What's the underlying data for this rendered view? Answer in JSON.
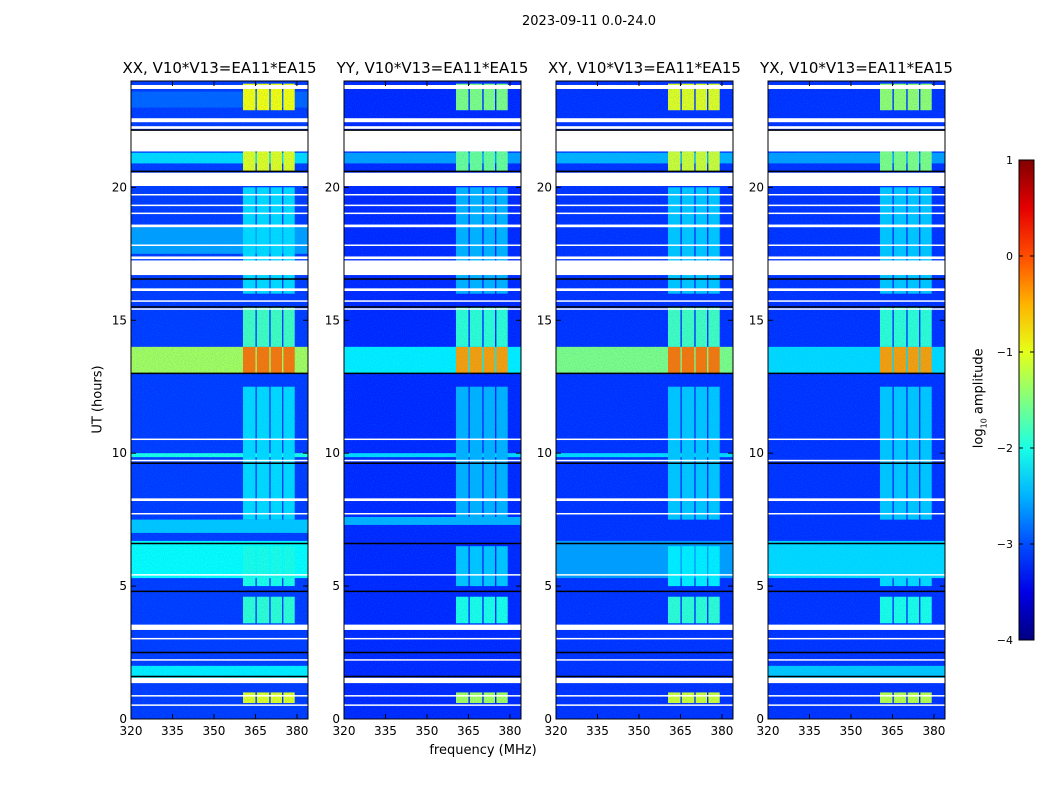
{
  "suptitle": "2023-09-11 0.0-24.0",
  "ylabel": "UT (hours)",
  "xlabel": "frequency (MHz)",
  "colorbar": {
    "label_prefix": "log",
    "label_sub": "10",
    "label_suffix": " amplitude",
    "range": [
      -4,
      1
    ],
    "ticks": [
      1,
      0,
      -1,
      -2,
      -3,
      -4
    ],
    "tick_labels": [
      "1",
      "0",
      "−1",
      "−2",
      "−3",
      "−4"
    ],
    "colormap": "jet"
  },
  "chart_data": {
    "type": "heatmap",
    "xlim": [
      320,
      384
    ],
    "ylim": [
      0,
      24
    ],
    "xticks": [
      320,
      335,
      350,
      365,
      380
    ],
    "xtick_labels": [
      "320",
      "335",
      "350",
      "365",
      "380"
    ],
    "yticks": [
      0,
      5,
      10,
      15,
      20
    ],
    "ytick_labels": [
      "0",
      "5",
      "10",
      "15",
      "20"
    ],
    "rfi_channels": [
      [
        360.5,
        365
      ],
      [
        365.5,
        370
      ],
      [
        370.5,
        374.6
      ],
      [
        375.1,
        379.2
      ]
    ],
    "flagged_hours": [
      [
        23.7,
        23.85
      ],
      [
        22.45,
        22.6
      ],
      [
        22.2,
        22.3
      ],
      [
        21.35,
        22.15
      ],
      [
        20.05,
        20.55
      ],
      [
        19.7,
        19.75
      ],
      [
        19.3,
        19.35
      ],
      [
        19.0,
        19.05
      ],
      [
        18.5,
        18.6
      ],
      [
        17.8,
        17.85
      ],
      [
        17.3,
        17.4
      ],
      [
        16.7,
        17.25
      ],
      [
        16.1,
        16.2
      ],
      [
        15.7,
        15.75
      ],
      [
        15.4,
        15.45
      ],
      [
        10.5,
        10.55
      ],
      [
        9.7,
        9.75
      ],
      [
        8.2,
        8.3
      ],
      [
        7.7,
        7.75
      ],
      [
        5.4,
        5.45
      ],
      [
        3.35,
        3.55
      ],
      [
        3.0,
        3.05
      ],
      [
        2.2,
        2.25
      ],
      [
        1.35,
        1.55
      ],
      [
        0.85,
        0.9
      ],
      [
        0.5,
        0.55
      ]
    ],
    "gap_lines_hours": [
      22.15,
      20.6,
      16.55,
      15.5,
      13.0,
      9.62,
      6.6,
      4.8,
      2.5,
      1.6
    ],
    "panels": [
      {
        "title": "XX, V10*V13=EA11*EA15",
        "base_level": -3.1,
        "segments": [
          {
            "t": [
              23.0,
              23.6
            ],
            "level": -2.9
          },
          {
            "t": [
              20.9,
              21.3
            ],
            "level": -2.3
          },
          {
            "t": [
              13.0,
              14.0
            ],
            "level": -1.3
          },
          {
            "t": [
              5.3,
              6.7
            ],
            "level": -2.1
          },
          {
            "t": [
              7.0,
              7.5
            ],
            "level": -2.4
          },
          {
            "t": [
              1.5,
              2.0
            ],
            "level": -2.2
          },
          {
            "t": [
              9.85,
              10.0
            ],
            "level": -2.0
          },
          {
            "t": [
              17.5,
              18.5
            ],
            "level": -2.6
          }
        ],
        "rfi_segments": [
          {
            "t": [
              22.9,
              23.9
            ],
            "level": -0.9
          },
          {
            "t": [
              20.6,
              21.35
            ],
            "level": -1.0
          },
          {
            "t": [
              13.0,
              14.0
            ],
            "level": -0.2
          },
          {
            "t": [
              14.0,
              15.5
            ],
            "level": -1.8
          },
          {
            "t": [
              5.0,
              6.5
            ],
            "level": -2.0
          },
          {
            "t": [
              3.6,
              4.6
            ],
            "level": -1.9
          },
          {
            "t": [
              0.6,
              1.0
            ],
            "level": -1.0
          },
          {
            "t": [
              7.5,
              12.5
            ],
            "level": -2.3
          },
          {
            "t": [
              16.0,
              20.0
            ],
            "level": -2.3
          }
        ]
      },
      {
        "title": "YY, V10*V13=EA11*EA15",
        "base_level": -3.2,
        "segments": [
          {
            "t": [
              13.0,
              14.0
            ],
            "level": -2.2
          },
          {
            "t": [
              7.3,
              7.6
            ],
            "level": -2.5
          },
          {
            "t": [
              20.9,
              21.3
            ],
            "level": -2.6
          },
          {
            "t": [
              9.85,
              10.0
            ],
            "level": -2.3
          }
        ],
        "rfi_segments": [
          {
            "t": [
              22.9,
              23.9
            ],
            "level": -1.5
          },
          {
            "t": [
              20.6,
              21.35
            ],
            "level": -1.6
          },
          {
            "t": [
              13.0,
              14.0
            ],
            "level": -0.4
          },
          {
            "t": [
              14.0,
              15.5
            ],
            "level": -1.9
          },
          {
            "t": [
              3.6,
              4.6
            ],
            "level": -2.0
          },
          {
            "t": [
              5.0,
              6.5
            ],
            "level": -2.4
          },
          {
            "t": [
              0.6,
              1.0
            ],
            "level": -1.3
          },
          {
            "t": [
              7.5,
              12.5
            ],
            "level": -2.5
          },
          {
            "t": [
              16.0,
              20.0
            ],
            "level": -2.5
          }
        ]
      },
      {
        "title": "XY, V10*V13=EA11*EA15",
        "base_level": -3.15,
        "segments": [
          {
            "t": [
              13.0,
              14.0
            ],
            "level": -1.5
          },
          {
            "t": [
              5.3,
              6.7
            ],
            "level": -2.6
          },
          {
            "t": [
              20.9,
              21.3
            ],
            "level": -2.5
          },
          {
            "t": [
              9.85,
              10.0
            ],
            "level": -2.3
          }
        ],
        "rfi_segments": [
          {
            "t": [
              22.9,
              23.9
            ],
            "level": -1.0
          },
          {
            "t": [
              20.6,
              21.35
            ],
            "level": -1.1
          },
          {
            "t": [
              13.0,
              14.0
            ],
            "level": -0.2
          },
          {
            "t": [
              14.0,
              15.5
            ],
            "level": -1.8
          },
          {
            "t": [
              3.6,
              4.6
            ],
            "level": -1.9
          },
          {
            "t": [
              5.0,
              6.5
            ],
            "level": -2.2
          },
          {
            "t": [
              0.6,
              1.0
            ],
            "level": -1.1
          },
          {
            "t": [
              7.5,
              12.5
            ],
            "level": -2.4
          },
          {
            "t": [
              16.0,
              20.0
            ],
            "level": -2.4
          }
        ]
      },
      {
        "title": "YX, V10*V13=EA11*EA15",
        "base_level": -3.15,
        "segments": [
          {
            "t": [
              13.0,
              14.0
            ],
            "level": -2.3
          },
          {
            "t": [
              5.3,
              6.7
            ],
            "level": -2.3
          },
          {
            "t": [
              1.5,
              2.0
            ],
            "level": -2.4
          },
          {
            "t": [
              20.9,
              21.3
            ],
            "level": -2.6
          }
        ],
        "rfi_segments": [
          {
            "t": [
              22.9,
              23.9
            ],
            "level": -1.4
          },
          {
            "t": [
              20.6,
              21.35
            ],
            "level": -1.5
          },
          {
            "t": [
              13.0,
              14.0
            ],
            "level": -0.4
          },
          {
            "t": [
              14.0,
              15.5
            ],
            "level": -1.9
          },
          {
            "t": [
              3.6,
              4.6
            ],
            "level": -2.0
          },
          {
            "t": [
              5.0,
              6.5
            ],
            "level": -2.3
          },
          {
            "t": [
              0.6,
              1.0
            ],
            "level": -1.2
          },
          {
            "t": [
              7.5,
              12.5
            ],
            "level": -2.4
          },
          {
            "t": [
              16.0,
              20.0
            ],
            "level": -2.4
          }
        ]
      }
    ]
  }
}
